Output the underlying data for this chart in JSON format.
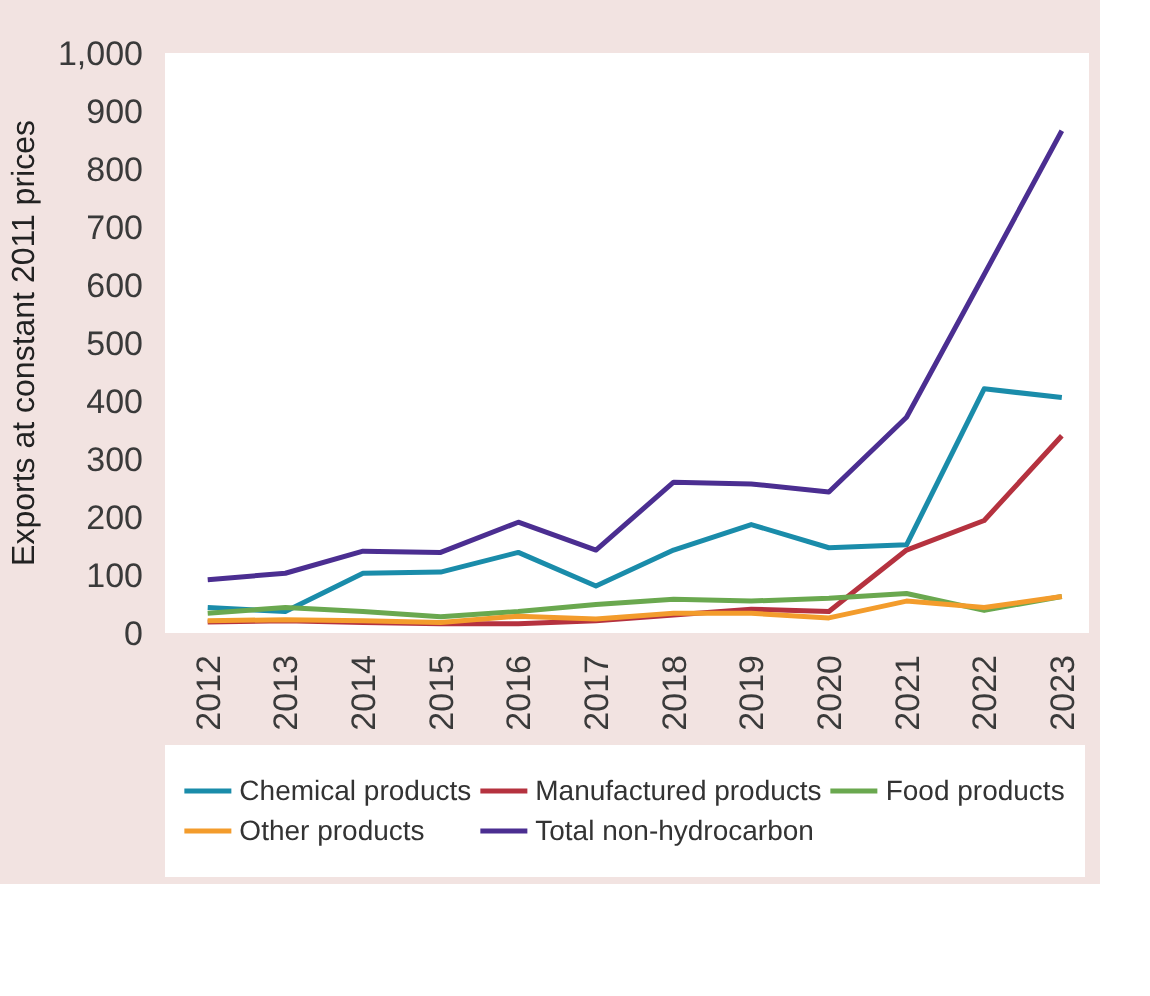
{
  "chart_data": {
    "type": "line",
    "ylabel": "Exports at constant 2011 prices",
    "categories": [
      "2012",
      "2013",
      "2014",
      "2015",
      "2016",
      "2017",
      "2018",
      "2019",
      "2020",
      "2021",
      "2022",
      "2023"
    ],
    "series": [
      {
        "name": "Chemical products",
        "color": "#1a8caa",
        "values": [
          44,
          37,
          103,
          105,
          139,
          81,
          143,
          187,
          147,
          152,
          421,
          406
        ]
      },
      {
        "name": "Manufactured products",
        "color": "#b5323f",
        "values": [
          19,
          21,
          18,
          16,
          16,
          21,
          31,
          41,
          37,
          143,
          194,
          340
        ]
      },
      {
        "name": "Food products",
        "color": "#6aa84f",
        "values": [
          34,
          44,
          37,
          28,
          37,
          49,
          58,
          55,
          60,
          68,
          39,
          63
        ]
      },
      {
        "name": "Other products",
        "color": "#f39c2c",
        "values": [
          21,
          23,
          21,
          18,
          29,
          24,
          34,
          34,
          26,
          55,
          44,
          63
        ]
      },
      {
        "name": "Total non-hydrocarbon",
        "color": "#4b2e91",
        "values": [
          92,
          103,
          141,
          139,
          191,
          143,
          260,
          257,
          243,
          372,
          618,
          866
        ]
      }
    ],
    "ylim": [
      0,
      1000
    ],
    "yticks": [
      0,
      100,
      200,
      300,
      400,
      500,
      600,
      700,
      800,
      900,
      {
        "value": 1000,
        "label": "1,000"
      }
    ],
    "grid": false,
    "legend": "bottom",
    "line_style": "solid"
  }
}
